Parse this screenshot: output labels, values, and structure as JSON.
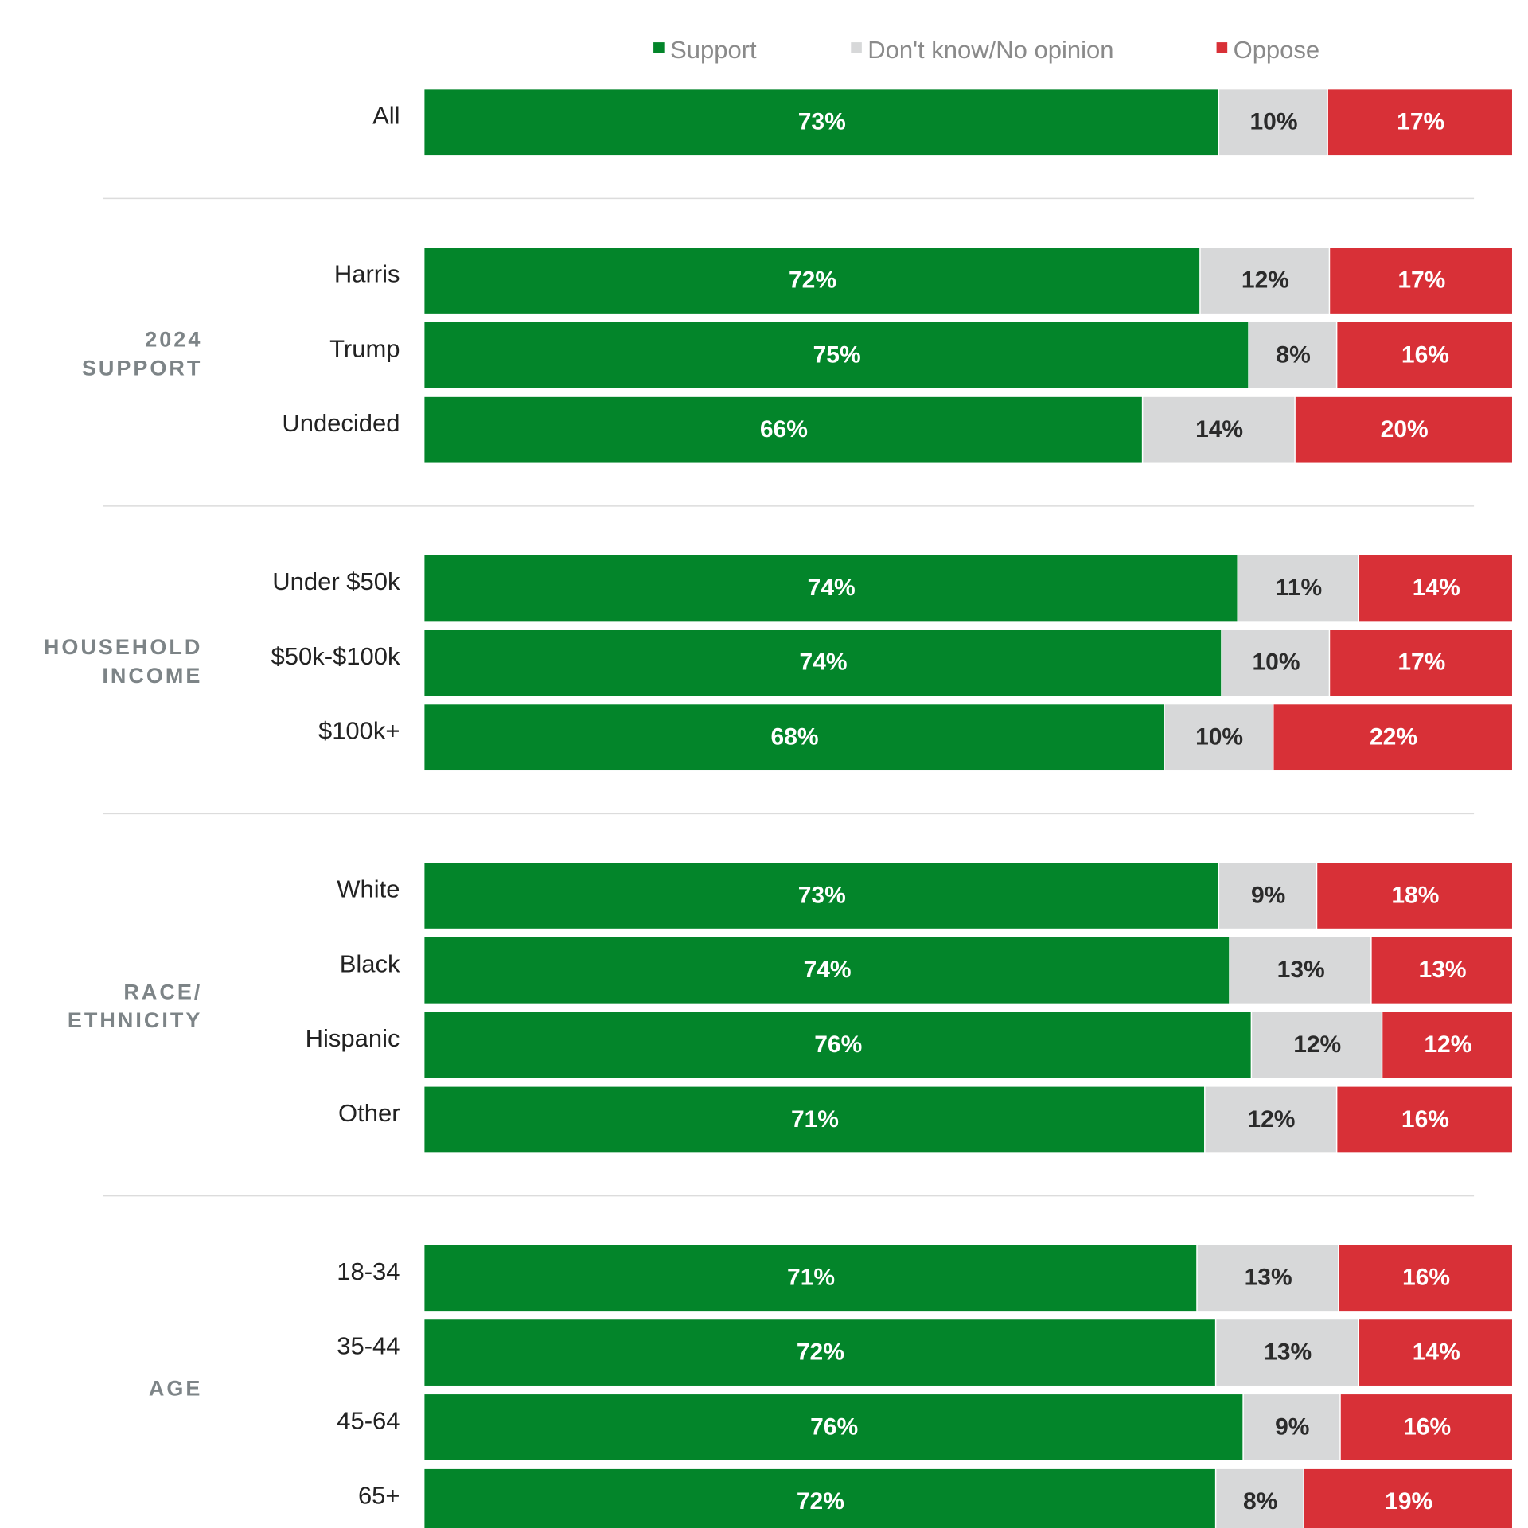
{
  "chart_data": {
    "type": "bar",
    "orientation": "horizontal",
    "stacked": true,
    "percent_suffix": "%",
    "legend": {
      "placement": "top",
      "items": [
        {
          "key": "support",
          "label": "Support",
          "color": "#03852a"
        },
        {
          "key": "dk",
          "label": "Don't know/No opinion",
          "color": "#d7d8d9"
        },
        {
          "key": "oppose",
          "label": "Oppose",
          "color": "#d83037"
        }
      ]
    },
    "label_colors": {
      "support": "#ffffff",
      "dk": "#2b2b2b",
      "oppose": "#ffffff"
    },
    "groups": [
      {
        "label": [],
        "rows": [
          {
            "label": "All",
            "support": 73,
            "dk": 10,
            "oppose": 17
          }
        ]
      },
      {
        "label": [
          "2024",
          "SUPPORT"
        ],
        "rows": [
          {
            "label": "Harris",
            "support": 72,
            "dk": 12,
            "oppose": 17
          },
          {
            "label": "Trump",
            "support": 75,
            "dk": 8,
            "oppose": 16
          },
          {
            "label": "Undecided",
            "support": 66,
            "dk": 14,
            "oppose": 20
          }
        ]
      },
      {
        "label": [
          "HOUSEHOLD",
          "INCOME"
        ],
        "rows": [
          {
            "label": "Under $50k",
            "support": 74,
            "dk": 11,
            "oppose": 14
          },
          {
            "label": "$50k-$100k",
            "support": 74,
            "dk": 10,
            "oppose": 17
          },
          {
            "label": "$100k+",
            "support": 68,
            "dk": 10,
            "oppose": 22
          }
        ]
      },
      {
        "label": [
          "RACE/",
          "ETHNICITY"
        ],
        "rows": [
          {
            "label": "White",
            "support": 73,
            "dk": 9,
            "oppose": 18
          },
          {
            "label": "Black",
            "support": 74,
            "dk": 13,
            "oppose": 13
          },
          {
            "label": "Hispanic",
            "support": 76,
            "dk": 12,
            "oppose": 12
          },
          {
            "label": "Other",
            "support": 71,
            "dk": 12,
            "oppose": 16
          }
        ]
      },
      {
        "label": [
          "AGE"
        ],
        "rows": [
          {
            "label": "18-34",
            "support": 71,
            "dk": 13,
            "oppose": 16
          },
          {
            "label": "35-44",
            "support": 72,
            "dk": 13,
            "oppose": 14
          },
          {
            "label": "45-64",
            "support": 76,
            "dk": 9,
            "oppose": 16
          },
          {
            "label": "65+",
            "support": 72,
            "dk": 8,
            "oppose": 19
          }
        ]
      }
    ]
  }
}
